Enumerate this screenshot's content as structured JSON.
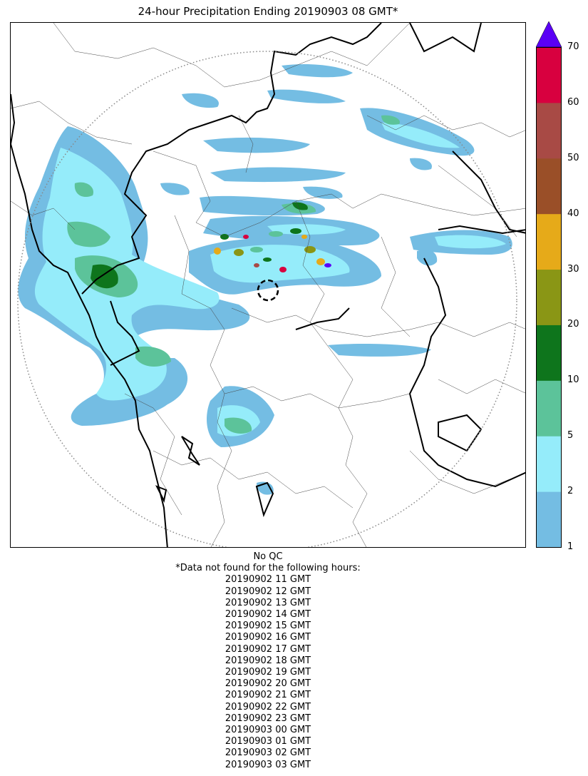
{
  "title": "24-hour Precipitation Ending 20190903 08 GMT*",
  "legend": {
    "levels": [
      "1",
      "2",
      "5",
      "10",
      "20",
      "30",
      "40",
      "50",
      "60",
      "70"
    ],
    "colors": [
      "#74bde3",
      "#95ecfa",
      "#5cc39a",
      "#0e751c",
      "#8a9615",
      "#e6aa19",
      "#9a4f28",
      "#a84a45",
      "#d8003f"
    ],
    "overflow_color": "#5a00f5",
    "units": ""
  },
  "map": {
    "radar_site_marker": "dashed-circle",
    "range_ring": "dotted-circle",
    "coastline_color": "#000000",
    "boundary_color": "#444444"
  },
  "footer": {
    "qc_note": "No QC",
    "missing_header": "*Data not found for the following hours:",
    "missing_hours": [
      "20190902 11 GMT",
      "20190902 12 GMT",
      "20190902 13 GMT",
      "20190902 14 GMT",
      "20190902 15 GMT",
      "20190902 16 GMT",
      "20190902 17 GMT",
      "20190902 18 GMT",
      "20190902 19 GMT",
      "20190902 20 GMT",
      "20190902 21 GMT",
      "20190902 22 GMT",
      "20190902 23 GMT",
      "20190903 00 GMT",
      "20190903 01 GMT",
      "20190903 02 GMT",
      "20190903 03 GMT"
    ]
  }
}
